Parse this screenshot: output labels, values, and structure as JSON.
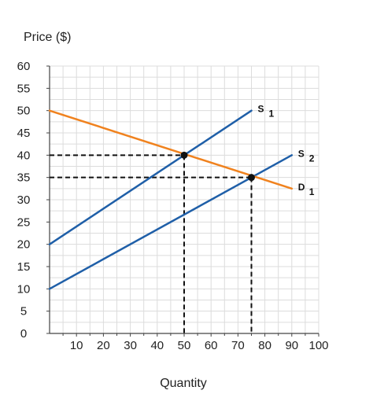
{
  "chart_data": {
    "type": "line",
    "title": "",
    "xlabel": "Quantity",
    "ylabel": "Price ($)",
    "xlim": [
      0,
      100
    ],
    "ylim": [
      0,
      60
    ],
    "x_ticks": [
      10,
      20,
      30,
      40,
      50,
      60,
      70,
      80,
      90,
      100
    ],
    "y_ticks": [
      0,
      5,
      10,
      15,
      20,
      25,
      30,
      35,
      40,
      45,
      50,
      55,
      60
    ],
    "grid": true,
    "series": [
      {
        "name": "S",
        "subscript": "1",
        "color": "#1f5fa8",
        "points": [
          [
            0,
            20
          ],
          [
            75,
            50
          ]
        ]
      },
      {
        "name": "S",
        "subscript": "2",
        "color": "#1f5fa8",
        "points": [
          [
            0,
            10
          ],
          [
            90,
            40
          ]
        ]
      },
      {
        "name": "D",
        "subscript": "1",
        "color": "#f0821e",
        "points": [
          [
            0,
            50
          ],
          [
            90,
            32.5
          ]
        ]
      }
    ],
    "equilibria": [
      {
        "x": 50,
        "y": 40
      },
      {
        "x": 75,
        "y": 35
      }
    ]
  }
}
